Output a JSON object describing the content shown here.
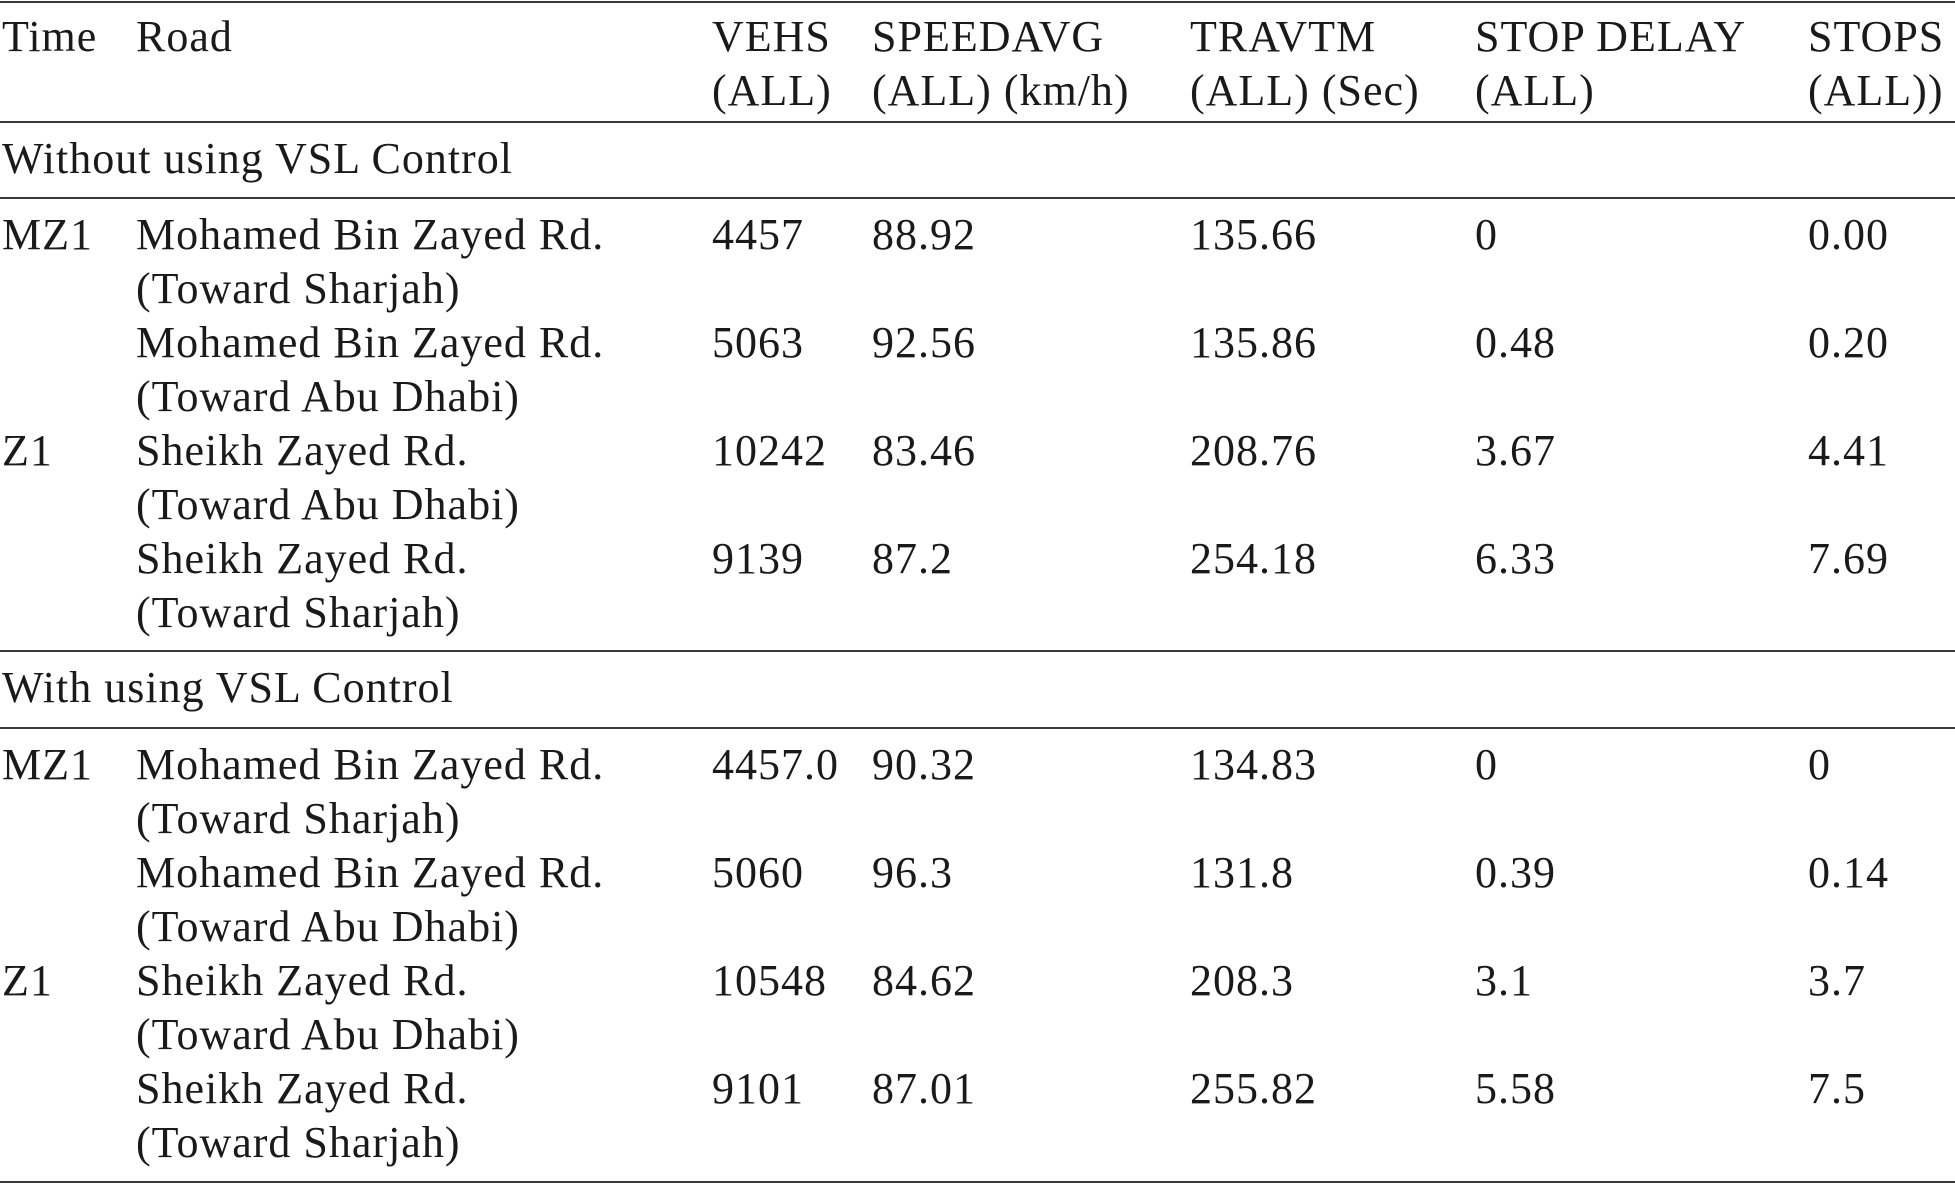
{
  "columns": {
    "time": [
      "Time"
    ],
    "road": [
      "Road"
    ],
    "vehs": [
      "VEHS",
      "(ALL)"
    ],
    "speedavg": [
      "SPEEDAVG",
      "(ALL) (km/h)"
    ],
    "travtm": [
      "TRAVTM",
      "(ALL) (Sec)"
    ],
    "stop_delay": [
      "STOP DELAY",
      "(ALL)"
    ],
    "stops": [
      "STOPS",
      "(ALL))"
    ]
  },
  "sections": [
    {
      "title": "Without using VSL Control",
      "rows": [
        {
          "time": "MZ1",
          "road": [
            "Mohamed Bin Zayed Rd.",
            "(Toward Sharjah)"
          ],
          "vehs": "4457",
          "speedavg": "88.92",
          "travtm": "135.66",
          "stop_delay": "0",
          "stops": "0.00"
        },
        {
          "time": "",
          "road": [
            "Mohamed Bin Zayed Rd.",
            "(Toward Abu Dhabi)"
          ],
          "vehs": "5063",
          "speedavg": "92.56",
          "travtm": "135.86",
          "stop_delay": "0.48",
          "stops": "0.20"
        },
        {
          "time": "Z1",
          "road": [
            "Sheikh Zayed Rd.",
            "(Toward Abu Dhabi)"
          ],
          "vehs": "10242",
          "speedavg": "83.46",
          "travtm": "208.76",
          "stop_delay": "3.67",
          "stops": "4.41"
        },
        {
          "time": "",
          "road": [
            "Sheikh Zayed Rd.",
            "(Toward Sharjah)"
          ],
          "vehs": "9139",
          "speedavg": "87.2",
          "travtm": "254.18",
          "stop_delay": "6.33",
          "stops": "7.69"
        }
      ]
    },
    {
      "title": "With using VSL Control",
      "rows": [
        {
          "time": "MZ1",
          "road": [
            "Mohamed Bin Zayed Rd.",
            "(Toward Sharjah)"
          ],
          "vehs": "4457.0",
          "speedavg": "90.32",
          "travtm": "134.83",
          "stop_delay": "0",
          "stops": "0"
        },
        {
          "time": "",
          "road": [
            "Mohamed Bin Zayed Rd.",
            "(Toward Abu Dhabi)"
          ],
          "vehs": "5060",
          "speedavg": "96.3",
          "travtm": "131.8",
          "stop_delay": "0.39",
          "stops": "0.14"
        },
        {
          "time": "Z1",
          "road": [
            "Sheikh Zayed Rd.",
            "(Toward Abu Dhabi)"
          ],
          "vehs": "10548",
          "speedavg": "84.62",
          "travtm": "208.3",
          "stop_delay": "3.1",
          "stops": "3.7"
        },
        {
          "time": "",
          "road": [
            "Sheikh Zayed Rd.",
            "(Toward Sharjah)"
          ],
          "vehs": "9101",
          "speedavg": "87.01",
          "travtm": "255.82",
          "stop_delay": "5.58",
          "stops": "7.5"
        }
      ]
    }
  ]
}
